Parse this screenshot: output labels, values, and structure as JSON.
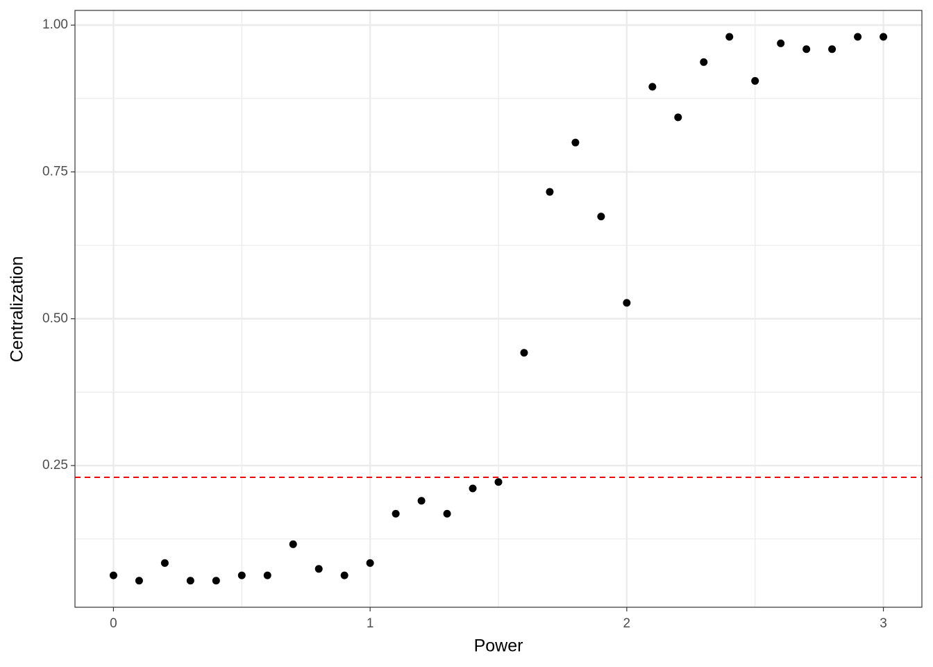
{
  "chart_data": {
    "type": "scatter",
    "x_label": "Power",
    "y_label": "Centralization",
    "x": [
      0,
      0.1,
      0.2,
      0.3,
      0.4,
      0.5,
      0.6,
      0.7,
      0.8,
      0.9,
      1.0,
      1.1,
      1.2,
      1.3,
      1.4,
      1.5,
      1.6,
      1.7,
      1.8,
      1.9,
      2.0,
      2.1,
      2.2,
      2.3,
      2.4,
      2.5,
      2.6,
      2.7,
      2.8,
      2.9,
      3.0
    ],
    "values": [
      0.063,
      0.054,
      0.084,
      0.054,
      0.054,
      0.063,
      0.063,
      0.116,
      0.074,
      0.063,
      0.084,
      0.168,
      0.19,
      0.168,
      0.211,
      0.222,
      0.442,
      0.716,
      0.8,
      0.674,
      0.527,
      0.895,
      0.843,
      0.937,
      0.98,
      0.905,
      0.969,
      0.959,
      0.959,
      0.98,
      0.98
    ],
    "color": "#000000",
    "xlim": [
      -0.15,
      3.15
    ],
    "ylim": [
      0.0087,
      1.025
    ],
    "xticks": [
      0,
      1,
      2,
      3
    ],
    "yticks": [
      0.25,
      {
        "value": 0.5,
        "label": "0.50"
      },
      0.75,
      {
        "value": 1,
        "label": "1.00"
      }
    ],
    "x_minor_grid": [
      0.5,
      1.5,
      2.5
    ],
    "y_minor_grid": [
      0.125,
      0.375,
      0.625,
      0.875
    ],
    "grid": true,
    "hline": {
      "value": 0.23,
      "color": "#ff0000",
      "linestyle": "dashed"
    }
  }
}
